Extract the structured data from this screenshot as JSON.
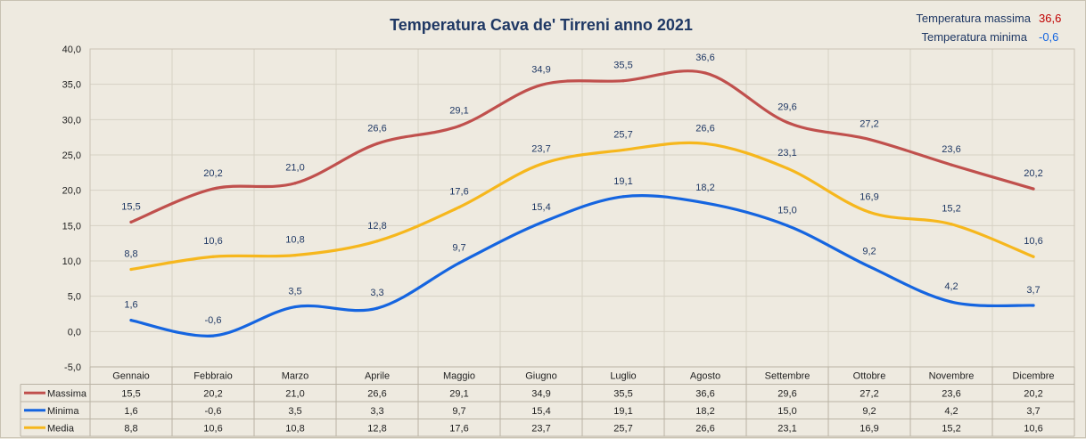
{
  "chart_data": {
    "type": "line",
    "title": "Temperatura Cava de' Tirreni anno 2021",
    "categories": [
      "Gennaio",
      "Febbraio",
      "Marzo",
      "Aprile",
      "Maggio",
      "Giugno",
      "Luglio",
      "Agosto",
      "Settembre",
      "Ottobre",
      "Novembre",
      "Dicembre"
    ],
    "series": [
      {
        "name": "Massima",
        "color": "#c0504d",
        "values": [
          15.5,
          20.2,
          21.0,
          26.6,
          29.1,
          34.9,
          35.5,
          36.6,
          29.6,
          27.2,
          23.6,
          20.2
        ],
        "labels": [
          "15,5",
          "20,2",
          "21,0",
          "26,6",
          "29,1",
          "34,9",
          "35,5",
          "36,6",
          "29,6",
          "27,2",
          "23,6",
          "20,2"
        ]
      },
      {
        "name": "Minima",
        "color": "#1565e0",
        "values": [
          1.6,
          -0.6,
          3.5,
          3.3,
          9.7,
          15.4,
          19.1,
          18.2,
          15.0,
          9.2,
          4.2,
          3.7
        ],
        "labels": [
          "1,6",
          "-0,6",
          "3,5",
          "3,3",
          "9,7",
          "15,4",
          "19,1",
          "18,2",
          "15,0",
          "9,2",
          "4,2",
          "3,7"
        ]
      },
      {
        "name": "Media",
        "color": "#f6b71d",
        "values": [
          8.8,
          10.6,
          10.8,
          12.8,
          17.6,
          23.7,
          25.7,
          26.6,
          23.1,
          16.9,
          15.2,
          10.6
        ],
        "labels": [
          "8,8",
          "10,6",
          "10,8",
          "12,8",
          "17,6",
          "23,7",
          "25,7",
          "26,6",
          "23,1",
          "16,9",
          "15,2",
          "10,6"
        ]
      }
    ],
    "ylim": [
      -5,
      40
    ],
    "yticks": [
      -5,
      0,
      5,
      10,
      15,
      20,
      25,
      30,
      35,
      40
    ],
    "ytick_labels": [
      "-5,0",
      "0,0",
      "5,0",
      "10,0",
      "15,0",
      "20,0",
      "25,0",
      "30,0",
      "35,0",
      "40,0"
    ],
    "grid": true,
    "legend": "data-table",
    "stats": [
      {
        "label": "Temperatura massima",
        "value": "36,6",
        "color": "#c00000"
      },
      {
        "label": "Temperatura minima",
        "value": "-0,6",
        "color": "#1565e0"
      }
    ]
  }
}
